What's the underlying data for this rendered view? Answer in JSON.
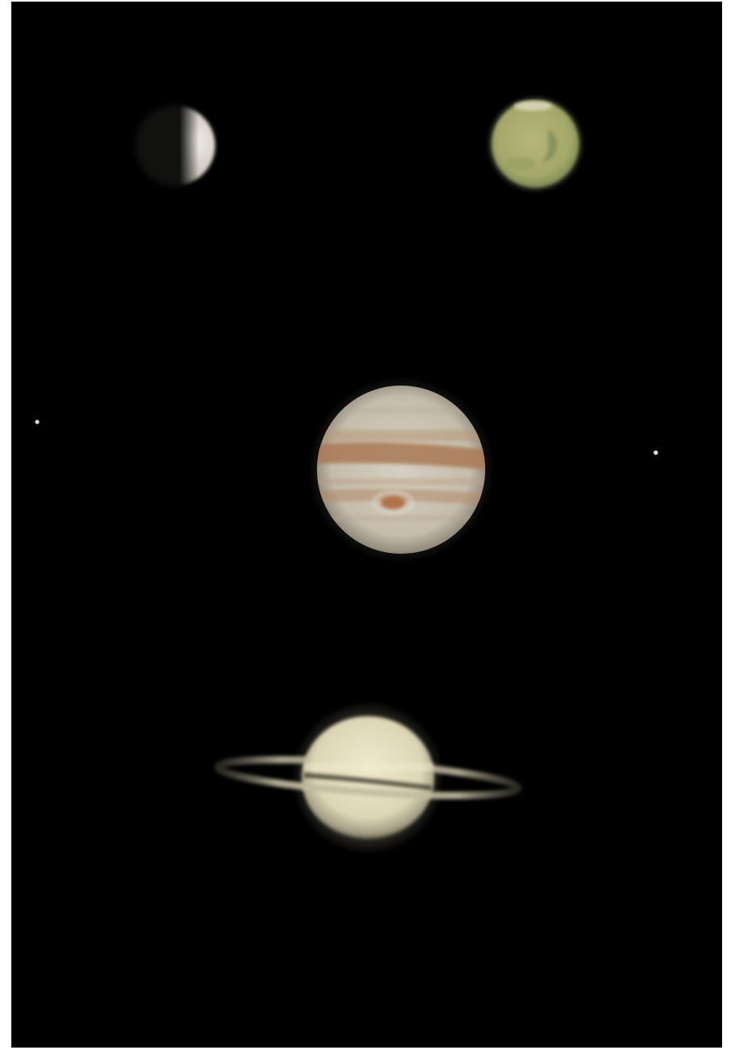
{
  "image": {
    "subject": "telescope-planet-composite",
    "background_color": "#000000",
    "border_color": "#ffffff"
  },
  "planets": [
    {
      "name": "venus-crescent",
      "base_color": "#d9d4cc"
    },
    {
      "name": "mars",
      "base_color": "#a8ad6e"
    },
    {
      "name": "jupiter",
      "base_color": "#cfc6b6",
      "band_color": "#a97a55"
    },
    {
      "name": "jupiter-moon-left",
      "base_color": "#d8d8d8"
    },
    {
      "name": "jupiter-moon-right",
      "base_color": "#d8d8d8"
    },
    {
      "name": "saturn",
      "base_color": "#e4ddbf",
      "ring_color": "#b9b39b"
    }
  ]
}
